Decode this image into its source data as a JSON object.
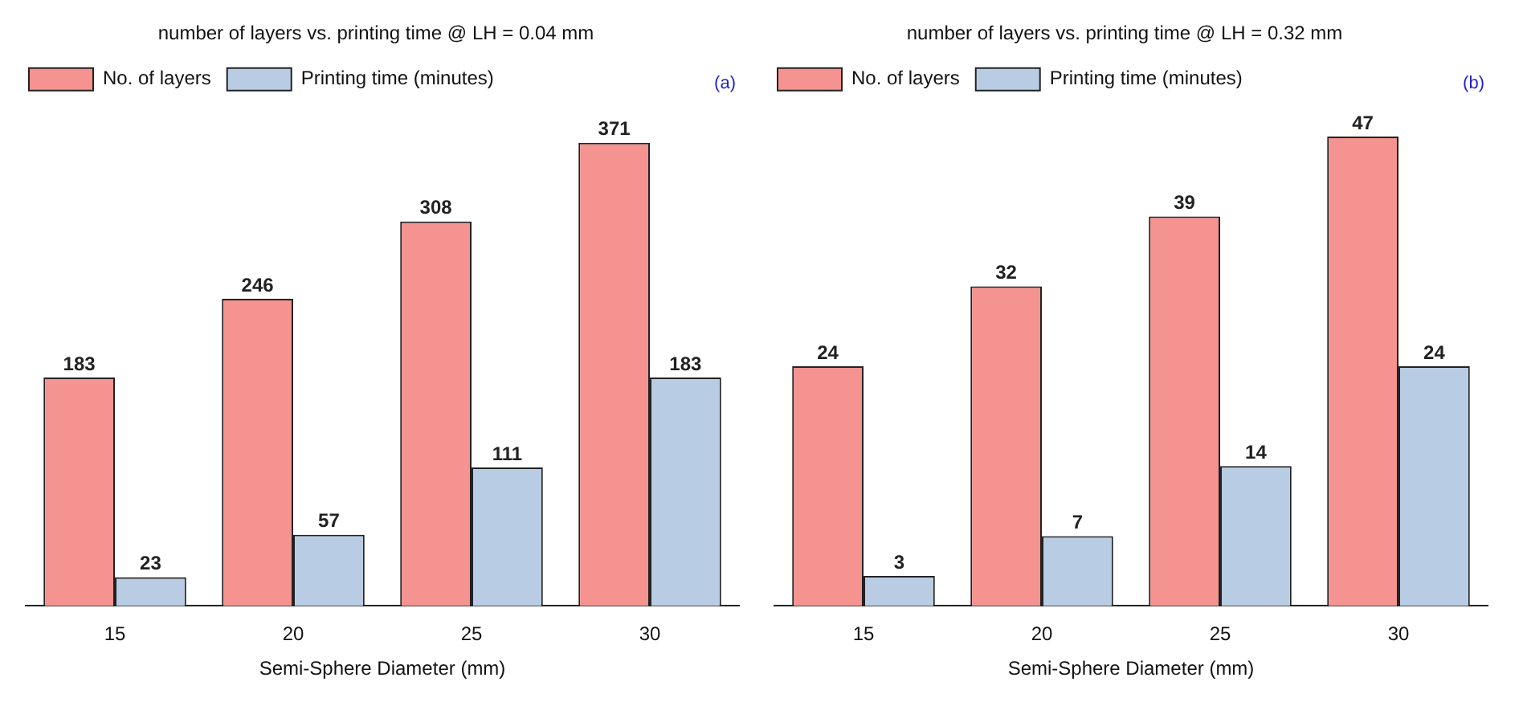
{
  "chart_data": [
    {
      "type": "bar",
      "title": "number of layers vs. printing time @ LH = 0.04 mm",
      "xlabel": "Semi-Sphere Diameter (mm)",
      "categories": [
        "15",
        "20",
        "25",
        "30"
      ],
      "series": [
        {
          "name": "No. of layers",
          "color": "#f4938f",
          "values": [
            183,
            246,
            308,
            371
          ]
        },
        {
          "name": "Printing time (minutes)",
          "color": "#b8cde4",
          "values": [
            23,
            57,
            111,
            183
          ]
        }
      ],
      "data_labels": true,
      "legend": "top left",
      "grid": false,
      "tick_labels": "x",
      "annotations": [
        "(a)"
      ]
    },
    {
      "type": "bar",
      "title": "number of layers vs. printing time @ LH = 0.32 mm",
      "xlabel": "Semi-Sphere Diameter (mm)",
      "categories": [
        "15",
        "20",
        "25",
        "30"
      ],
      "series": [
        {
          "name": "No. of layers",
          "color": "#f4938f",
          "values": [
            24,
            32,
            39,
            47
          ]
        },
        {
          "name": "Printing time (minutes)",
          "color": "#b8cde4",
          "values": [
            3,
            7,
            14,
            24
          ]
        }
      ],
      "data_labels": true,
      "legend": "top left",
      "grid": false,
      "tick_labels": "x",
      "annotations": [
        "(b)"
      ]
    }
  ]
}
